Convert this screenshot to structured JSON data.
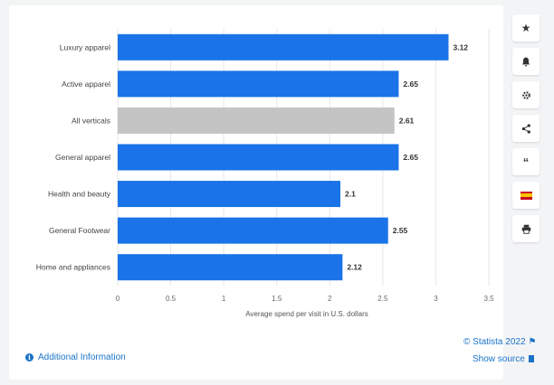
{
  "chart_data": {
    "type": "bar",
    "orientation": "horizontal",
    "categories": [
      "Luxury apparel",
      "Active apparel",
      "All verticals",
      "General apparel",
      "Health and beauty",
      "General Footwear",
      "Home and appliances"
    ],
    "values": [
      3.12,
      2.65,
      2.61,
      2.65,
      2.1,
      2.55,
      2.12
    ],
    "value_labels": [
      "3.12",
      "2.65",
      "2.61",
      "2.65",
      "2.1",
      "2.55",
      "2.12"
    ],
    "highlight_category": "All verticals",
    "xlabel": "Average spend per visit in U.S. dollars",
    "xlim": [
      0,
      3.5
    ],
    "xticks": [
      0,
      0.5,
      1,
      1.5,
      2,
      2.5,
      3,
      3.5
    ],
    "xtick_labels": [
      "0",
      "0.5",
      "1",
      "1.5",
      "2",
      "2.5",
      "3",
      "3.5"
    ],
    "grid": true,
    "colors": {
      "bar": "#1a73e8",
      "highlight": "#c4c4c4",
      "grid": "#e6e6e6"
    }
  },
  "footer": {
    "info_icon_glyph": "i",
    "additional_info": "Additional Information",
    "copyright": "© Statista 2022",
    "show_source": "Show source"
  },
  "toolbar": {
    "icons": [
      "star-icon",
      "bell-icon",
      "gear-icon",
      "share-icon",
      "quote-icon",
      "spain-flag-icon",
      "print-icon"
    ]
  }
}
